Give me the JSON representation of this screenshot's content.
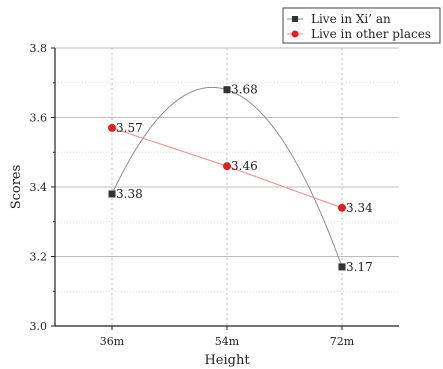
{
  "chart_data": {
    "type": "line",
    "categories": [
      "36m",
      "54m",
      "72m"
    ],
    "series": [
      {
        "name": "Live in Xi’ an",
        "values": [
          3.38,
          3.68,
          3.17
        ],
        "color": "#333333",
        "marker": "square",
        "smooth": true,
        "line_color": "#8c8c8c"
      },
      {
        "name": "Live in other places",
        "values": [
          3.57,
          3.46,
          3.34
        ],
        "color": "#e02020",
        "marker": "circle",
        "smooth": false,
        "line_color": "#e8908c"
      }
    ],
    "data_labels": [
      [
        "3.38",
        "3.68",
        "3.17"
      ],
      [
        "3.57",
        "3.46",
        "3.34"
      ]
    ],
    "xlabel": "Height",
    "ylabel": "Scores",
    "ylim": [
      3.0,
      3.8
    ],
    "yticks": [
      "3.0",
      "3.2",
      "3.4",
      "3.6",
      "3.8"
    ],
    "grid": "horizontal and vertical dotted",
    "legend_position": "top-right"
  }
}
